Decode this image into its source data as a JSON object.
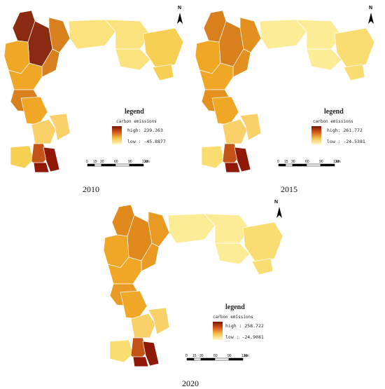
{
  "panels": [
    {
      "year": "2010",
      "legend": {
        "title": "legend",
        "subtitle": "carbon emissions",
        "high": "high: 239.363",
        "low": "low : -45.8877"
      },
      "north": "N",
      "scale": {
        "ticks": [
          "0",
          "15",
          "30",
          "60",
          "90",
          "120"
        ],
        "unit": "km"
      },
      "colors": {
        "north_main": "#8a2a10",
        "north_mid": "#d8801e",
        "north_side": "#f0a726",
        "east": "#fbe27c",
        "east_hi": "#f7cf52",
        "south": "#fad069",
        "south_hot": "#8f1806",
        "south_mid": "#c35416"
      }
    },
    {
      "year": "2015",
      "legend": {
        "title": "legend",
        "subtitle": "carbon emissions",
        "high": "high: 261.772",
        "low": "low : -24.5381"
      },
      "north": "N",
      "scale": {
        "ticks": [
          "0",
          "15",
          "30",
          "60",
          "90",
          "120"
        ],
        "unit": "km"
      },
      "colors": {
        "north_main": "#d8801e",
        "north_mid": "#e4901e",
        "north_side": "#f0a726",
        "east": "#fcec96",
        "east_hi": "#f9dd70",
        "south": "#fad069",
        "south_hot": "#8f1806",
        "south_mid": "#c35416"
      }
    },
    {
      "year": "2020",
      "legend": {
        "title": "legend",
        "subtitle": "carbon emissions",
        "high": "high : 258.722",
        "low": "low : -24.9081"
      },
      "north": "N",
      "scale": {
        "ticks": [
          "0",
          "15",
          "30",
          "60",
          "90",
          "120"
        ],
        "unit": "km"
      },
      "colors": {
        "north_main": "#e08a1e",
        "north_mid": "#e89a22",
        "north_side": "#f0a726",
        "east": "#fcec96",
        "east_hi": "#f9dd70",
        "south": "#fad069",
        "south_hot": "#8f1806",
        "south_mid": "#c35416"
      }
    }
  ]
}
